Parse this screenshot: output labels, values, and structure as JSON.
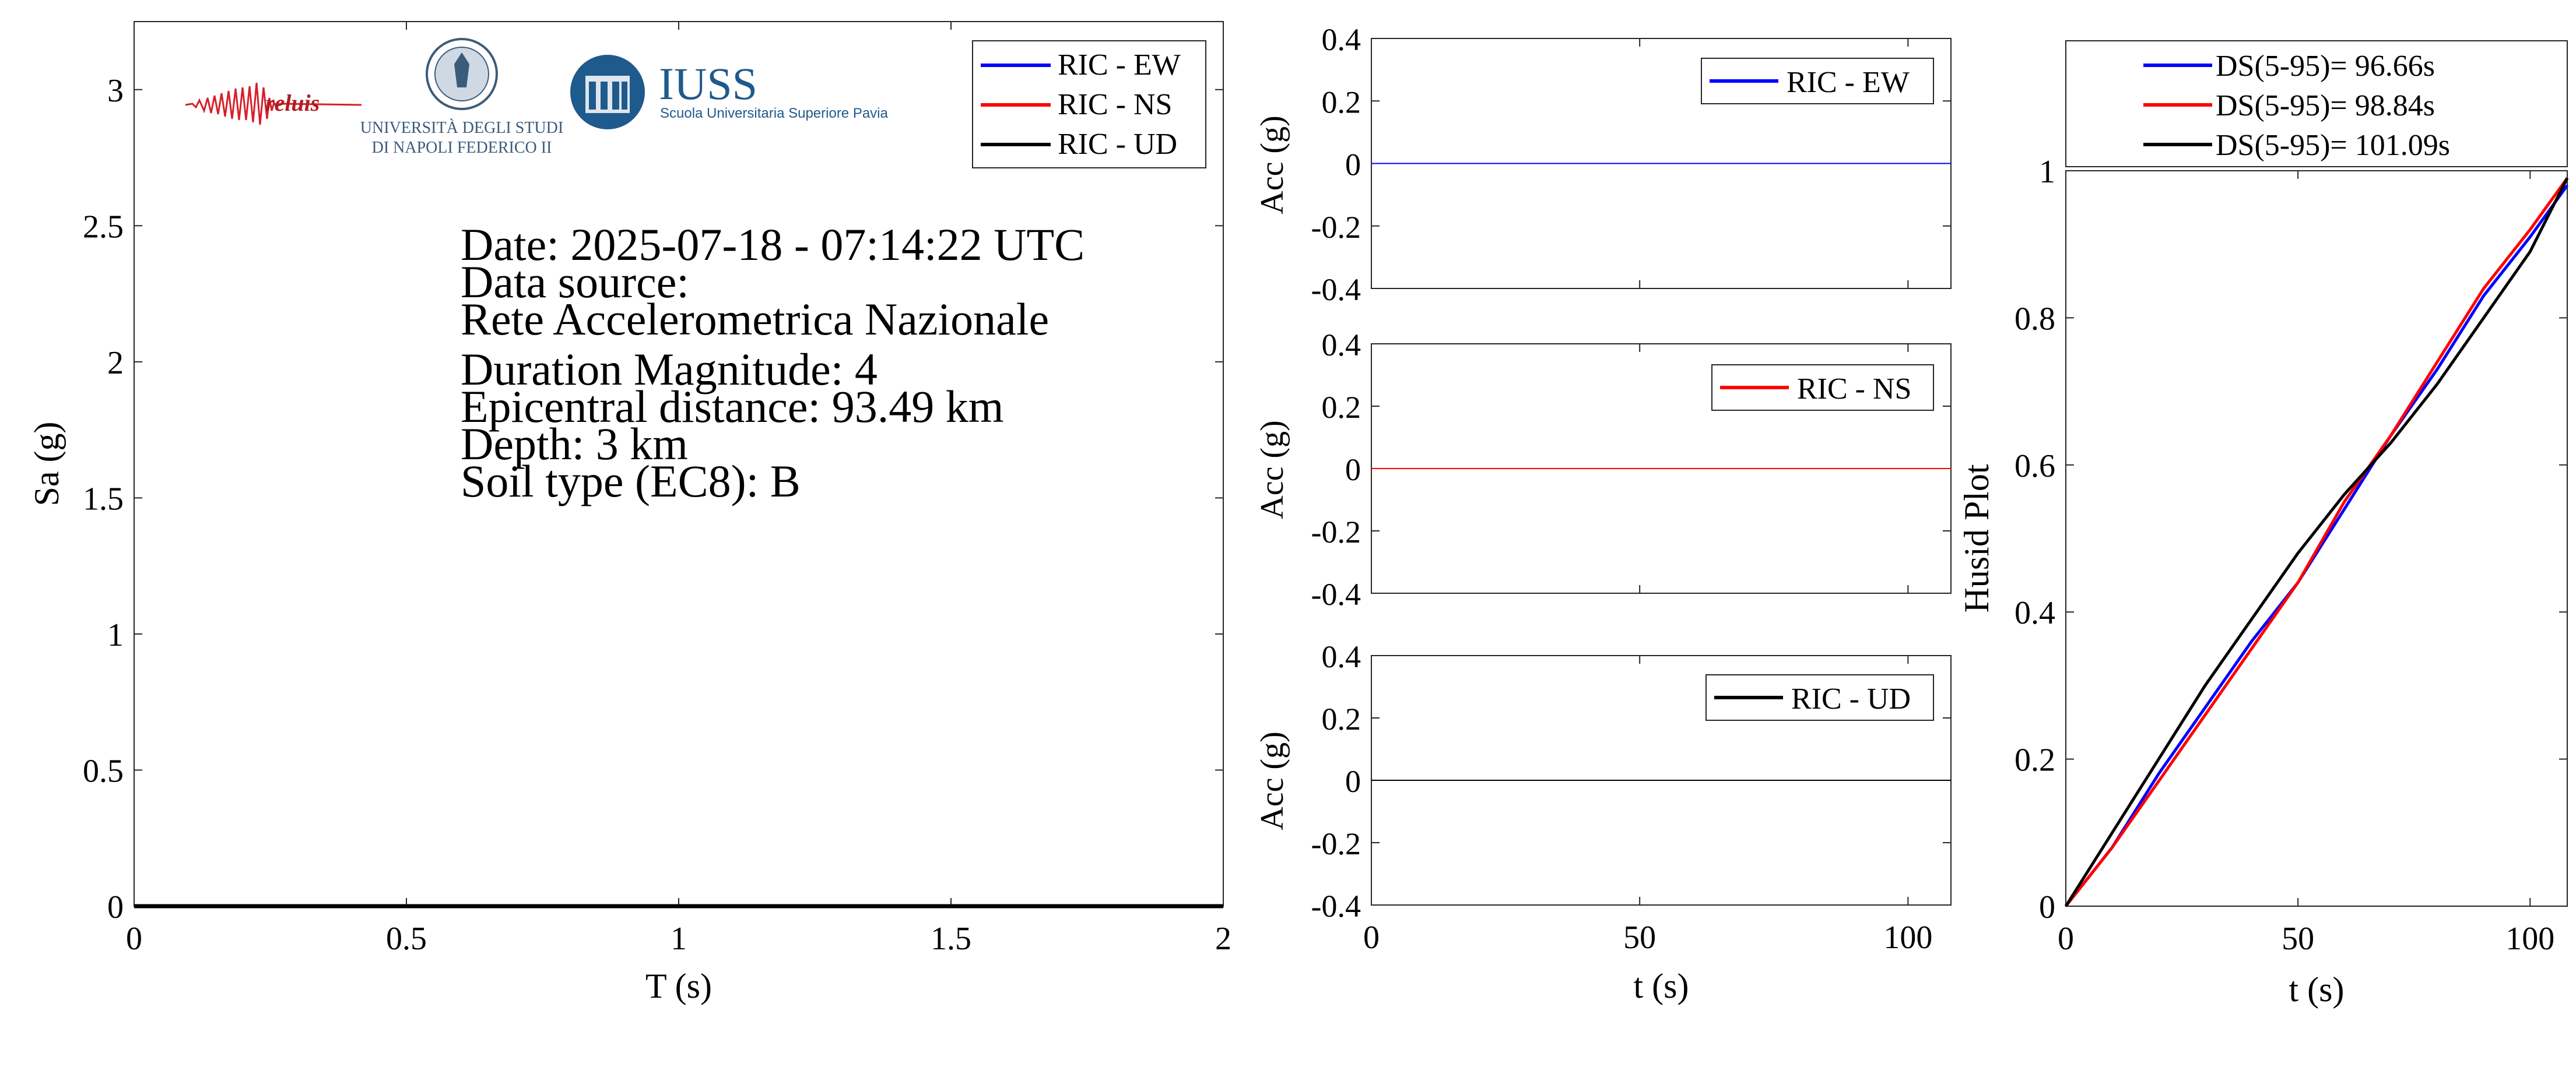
{
  "spectrum": {
    "xlabel": "T (s)",
    "ylabel": "Sa (g)",
    "x_ticks": [
      "0",
      "0.5",
      "1",
      "1.5",
      "2"
    ],
    "y_ticks": [
      "0",
      "0.5",
      "1",
      "1.5",
      "2",
      "2.5",
      "3"
    ],
    "legend": [
      "RIC - EW",
      "RIC - NS",
      "RIC - UD"
    ],
    "info_lines": [
      "Date: 2025-07-18 - 07:14:22 UTC",
      "Data source:",
      "Rete Accelerometrica Nazionale",
      "Duration Magnitude: 4",
      "Epicentral distance: 93.49 km",
      "Depth: 3 km",
      "Soil type (EC8): B"
    ],
    "logos": {
      "reluis": "reluis",
      "unina": [
        "UNIVERSITÀ DEGLI STUDI",
        "DI NAPOLI FEDERICO II"
      ],
      "iuss_title": "IUSS",
      "iuss_subtitle": "Scuola Universitaria Superiore Pavia"
    }
  },
  "accel": {
    "xlabel": "t (s)",
    "ylabel": "Acc (g)",
    "x_ticks": [
      "0",
      "50",
      "100"
    ],
    "y_ticks": [
      "0.4",
      "0.2",
      "0",
      "-0.2",
      "-0.4"
    ]
  },
  "husid": {
    "xlabel": "t (s)",
    "ylabel": "Husid Plot",
    "x_ticks": [
      "0",
      "50",
      "100"
    ],
    "y_ticks": [
      "0",
      "0.2",
      "0.4",
      "0.6",
      "0.8",
      "1"
    ],
    "legend": [
      "DS(5-95)= 96.66s",
      "DS(5-95)= 98.84s",
      "DS(5-95)= 101.09s"
    ]
  },
  "colors": {
    "ew": "#0000ff",
    "ns": "#ff0000",
    "ud": "#000000",
    "axis": "#262626"
  },
  "chart_data": [
    {
      "type": "line",
      "title": "",
      "xlabel": "T (s)",
      "ylabel": "Sa (g)",
      "xlim": [
        0,
        2
      ],
      "ylim": [
        0,
        3.25
      ],
      "x": [
        0,
        0.5,
        1,
        1.5,
        2
      ],
      "series": [
        {
          "name": "RIC - EW",
          "values": [
            0,
            0,
            0,
            0,
            0
          ]
        },
        {
          "name": "RIC - NS",
          "values": [
            0,
            0,
            0,
            0,
            0
          ]
        },
        {
          "name": "RIC - UD",
          "values": [
            0,
            0,
            0,
            0,
            0
          ]
        }
      ],
      "legend_position": "top-right"
    },
    {
      "type": "line",
      "xlabel": "t (s)",
      "ylabel": "Acc (g)",
      "xlim": [
        0,
        108
      ],
      "ylim": [
        -0.4,
        0.4
      ],
      "x": [
        0,
        108
      ],
      "series": [
        {
          "name": "RIC - EW",
          "values": [
            0,
            0
          ]
        }
      ],
      "legend_position": "top-right"
    },
    {
      "type": "line",
      "xlabel": "t (s)",
      "ylabel": "Acc (g)",
      "xlim": [
        0,
        108
      ],
      "ylim": [
        -0.4,
        0.4
      ],
      "x": [
        0,
        108
      ],
      "series": [
        {
          "name": "RIC - NS",
          "values": [
            0,
            0
          ]
        }
      ],
      "legend_position": "top-right"
    },
    {
      "type": "line",
      "xlabel": "t (s)",
      "ylabel": "Acc (g)",
      "xlim": [
        0,
        108
      ],
      "ylim": [
        -0.4,
        0.4
      ],
      "x": [
        0,
        108
      ],
      "series": [
        {
          "name": "RIC - UD",
          "values": [
            0,
            0
          ]
        }
      ],
      "legend_position": "top-right"
    },
    {
      "type": "line",
      "xlabel": "t (s)",
      "ylabel": "Husid Plot",
      "xlim": [
        0,
        108
      ],
      "ylim": [
        0,
        1
      ],
      "x": [
        0,
        10,
        20,
        30,
        40,
        50,
        60,
        70,
        80,
        90,
        100,
        108
      ],
      "series": [
        {
          "name": "DS(5-95)= 96.66s",
          "values": [
            0,
            0.08,
            0.18,
            0.27,
            0.36,
            0.44,
            0.54,
            0.64,
            0.73,
            0.83,
            0.91,
            0.98
          ]
        },
        {
          "name": "DS(5-95)= 98.84s",
          "values": [
            0,
            0.08,
            0.17,
            0.26,
            0.35,
            0.44,
            0.55,
            0.64,
            0.74,
            0.84,
            0.92,
            0.99
          ]
        },
        {
          "name": "DS(5-95)= 101.09s",
          "values": [
            0,
            0.1,
            0.2,
            0.3,
            0.39,
            0.48,
            0.56,
            0.63,
            0.71,
            0.8,
            0.89,
            0.99
          ]
        }
      ],
      "legend_position": "top"
    }
  ]
}
